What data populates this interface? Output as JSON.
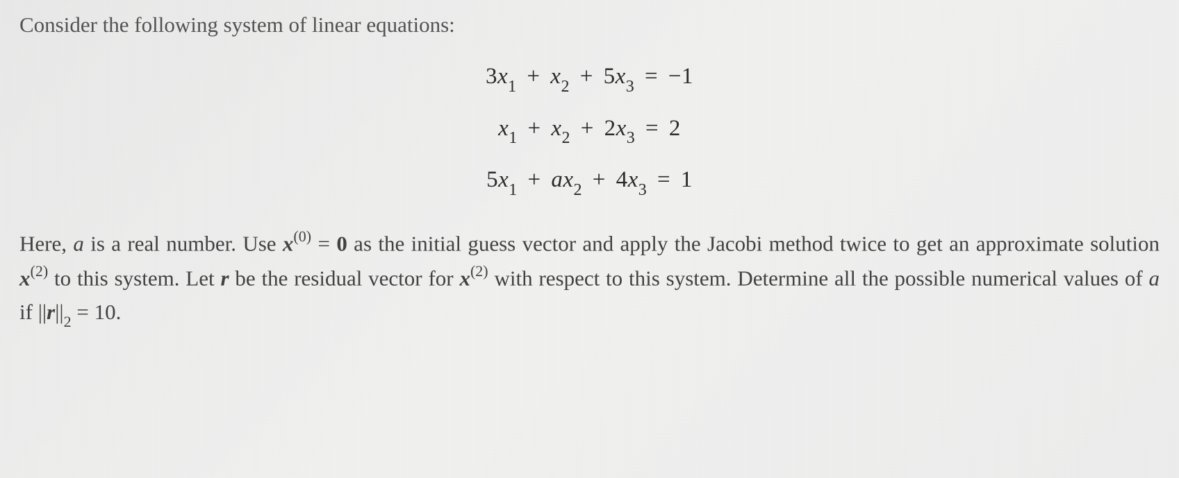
{
  "intro": "Consider the following system of linear equations:",
  "equations": {
    "eq1": {
      "c1": "3",
      "v1": "x",
      "s1": "1",
      "op1": "+",
      "v2": "x",
      "s2": "2",
      "op2": "+",
      "c3": "5",
      "v3": "x",
      "s3": "3",
      "eq": "=",
      "rhs": "−1"
    },
    "eq2": {
      "v1": "x",
      "s1": "1",
      "op1": "+",
      "v2": "x",
      "s2": "2",
      "op2": "+",
      "c3": "2",
      "v3": "x",
      "s3": "3",
      "eq": "=",
      "rhs": "2"
    },
    "eq3": {
      "c1": "5",
      "v1": "x",
      "s1": "1",
      "op1": "+",
      "c2": "a",
      "v2": "x",
      "s2": "2",
      "op2": "+",
      "c3": "4",
      "v3": "x",
      "s3": "3",
      "eq": "=",
      "rhs": "1"
    }
  },
  "body": {
    "t1": "Here, ",
    "var_a1": "a",
    "t2": " is a real number. Use ",
    "var_x1": "x",
    "sup0": "(0)",
    "t3": " = ",
    "zero": "0",
    "t4": " as the initial guess vector and apply the Jacobi method twice to get an approximate solution ",
    "var_x2": "x",
    "sup2": "(2)",
    "t5": " to this system. Let ",
    "var_r1": "r",
    "t6": " be the residual vector for ",
    "var_x3": "x",
    "sup2b": "(2)",
    "t7": " with respect to this system. Determine all the possible numerical values of ",
    "var_a2": "a",
    "t8": " if ",
    "norm_open": "||",
    "var_r2": "r",
    "norm_close": "||",
    "sub2": "2",
    "t9": " = 10."
  },
  "style": {
    "background_gradient": [
      "#e8e8e8",
      "#f0f0ef",
      "#ececec"
    ],
    "intro_color": "#525252",
    "equation_color": "#2a2a2a",
    "body_color": "#424242",
    "intro_fontsize": 31,
    "equation_fontsize": 33,
    "body_fontsize": 31,
    "subscript_fontsize": 24,
    "superscript_fontsize": 22,
    "line_height": 1.58,
    "font_family": "Georgia, Times New Roman, serif",
    "math_font_family": "Cambria Math, Georgia, serif"
  }
}
